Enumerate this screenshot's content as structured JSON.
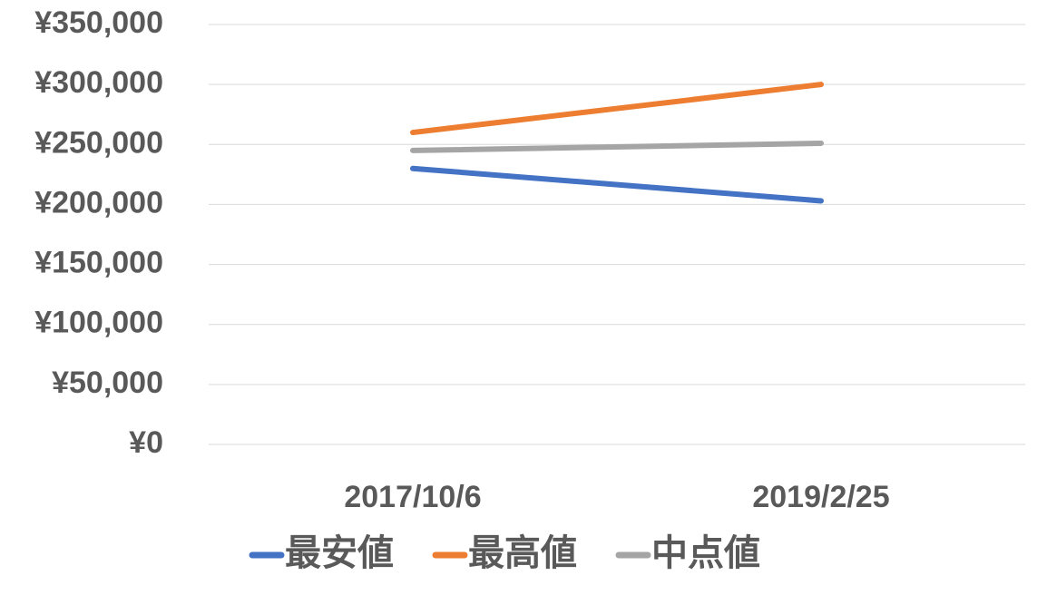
{
  "chart_data": {
    "type": "line",
    "categories": [
      "2017/10/6",
      "2019/2/25"
    ],
    "series": [
      {
        "name": "最安値",
        "color": "#4472c4",
        "values": [
          230000,
          203000
        ]
      },
      {
        "name": "最高値",
        "color": "#ed7d31",
        "values": [
          260000,
          300000
        ]
      },
      {
        "name": "中点値",
        "color": "#a5a5a5",
        "values": [
          245000,
          251000
        ]
      }
    ],
    "ylim": [
      0,
      350000
    ],
    "yticks": [
      {
        "value": 0,
        "label": "¥0"
      },
      {
        "value": 50000,
        "label": "¥50,000"
      },
      {
        "value": 100000,
        "label": "¥100,000"
      },
      {
        "value": 150000,
        "label": "¥150,000"
      },
      {
        "value": 200000,
        "label": "¥200,000"
      },
      {
        "value": 250000,
        "label": "¥250,000"
      },
      {
        "value": 300000,
        "label": "¥300,000"
      },
      {
        "value": 350000,
        "label": "¥350,000"
      }
    ],
    "grid": true,
    "legend": "bottom"
  }
}
